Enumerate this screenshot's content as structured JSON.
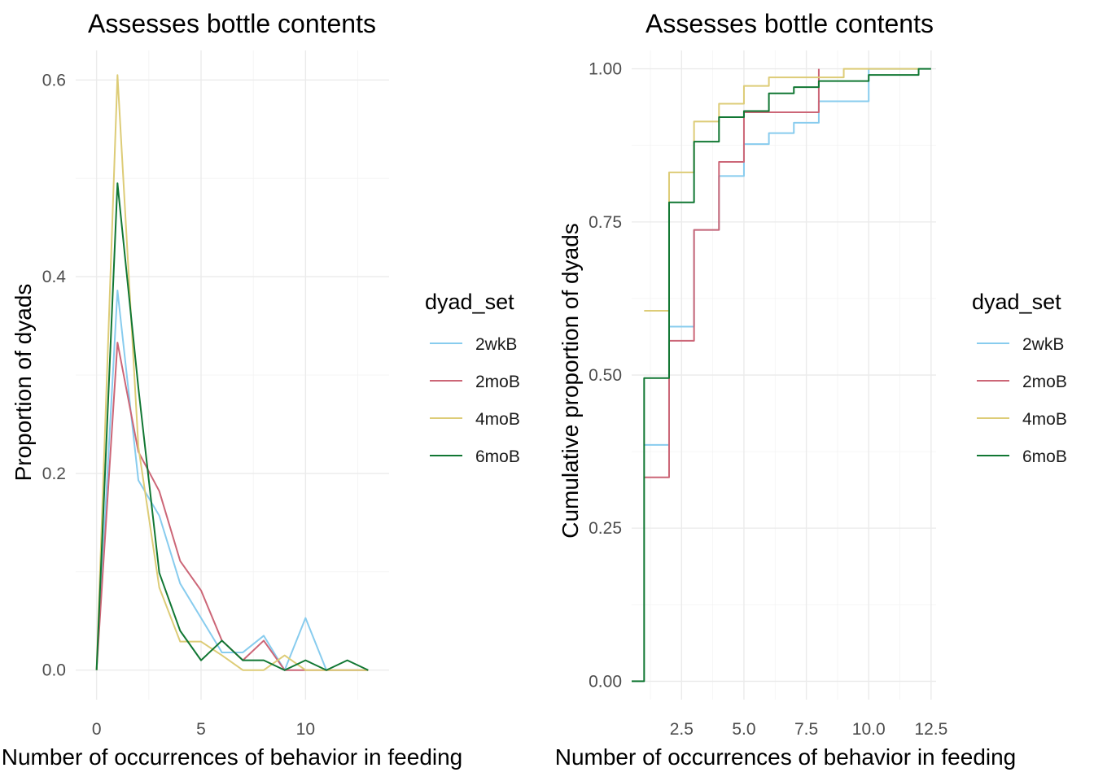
{
  "chart_data": [
    {
      "type": "line",
      "title": "Assesses bottle contents",
      "xlabel": "Number of occurrences of behavior in feeding",
      "ylabel": "Proportion of dyads",
      "xlim": [
        -1,
        14
      ],
      "ylim": [
        -0.03,
        0.63
      ],
      "xticks": [
        0,
        5,
        10
      ],
      "xtick_labels": [
        "0",
        "5",
        "10"
      ],
      "yticks": [
        0,
        0.2,
        0.4,
        0.6
      ],
      "ytick_labels": [
        "0.0",
        "0.2",
        "0.4",
        "0.6"
      ],
      "grid": true,
      "legend": {
        "title": "dyad_set",
        "position": "right"
      },
      "series": [
        {
          "name": "2wkB",
          "color": "#88CCEE",
          "x": [
            0,
            1,
            2,
            3,
            4,
            5,
            6,
            7,
            8,
            9,
            10,
            11,
            12,
            13
          ],
          "y": [
            0,
            0.386,
            0.193,
            0.157,
            0.088,
            0.053,
            0.018,
            0.018,
            0.035,
            0,
            0.053,
            0,
            0,
            0
          ]
        },
        {
          "name": "2moB",
          "color": "#CC6677",
          "x": [
            0,
            1,
            2,
            3,
            4,
            5,
            6,
            7,
            8,
            9,
            10,
            11,
            12,
            13
          ],
          "y": [
            0,
            0.333,
            0.222,
            0.182,
            0.111,
            0.081,
            0.03,
            0.01,
            0.03,
            0,
            0,
            0,
            0,
            0
          ]
        },
        {
          "name": "4moB",
          "color": "#DDCC77",
          "x": [
            0,
            1,
            2,
            3,
            4,
            5,
            6,
            7,
            8,
            9,
            10,
            11,
            12,
            13
          ],
          "y": [
            0,
            0.605,
            0.227,
            0.084,
            0.029,
            0.029,
            0.015,
            0,
            0,
            0.015,
            0,
            0,
            0,
            0
          ]
        },
        {
          "name": "6moB",
          "color": "#117733",
          "x": [
            0,
            1,
            2,
            3,
            4,
            5,
            6,
            7,
            8,
            9,
            10,
            11,
            12,
            13
          ],
          "y": [
            0,
            0.495,
            0.287,
            0.099,
            0.04,
            0.01,
            0.03,
            0.01,
            0.01,
            0,
            0.01,
            0,
            0.01,
            0
          ]
        }
      ]
    },
    {
      "type": "line",
      "step": true,
      "title": "Assesses bottle contents",
      "xlabel": "Number of occurrences of behavior in feeding",
      "ylabel": "Cumulative proportion of dyads",
      "xlim": [
        0.5,
        12.7
      ],
      "ylim": [
        -0.03,
        1.03
      ],
      "xticks": [
        2.5,
        5.0,
        7.5,
        10.0,
        12.5
      ],
      "xtick_labels": [
        "2.5",
        "5.0",
        "7.5",
        "10.0",
        "12.5"
      ],
      "yticks": [
        0,
        0.25,
        0.5,
        0.75,
        1.0
      ],
      "ytick_labels": [
        "0.00",
        "0.25",
        "0.50",
        "0.75",
        "1.00"
      ],
      "grid": true,
      "legend": {
        "title": "dyad_set",
        "position": "right"
      },
      "series": [
        {
          "name": "2wkB",
          "color": "#88CCEE",
          "x": [
            1,
            2,
            3,
            4,
            5,
            6,
            7,
            8,
            10,
            12
          ],
          "y": [
            0.386,
            0.579,
            0.737,
            0.825,
            0.877,
            0.895,
            0.912,
            0.947,
            1.0,
            1.0
          ]
        },
        {
          "name": "2moB",
          "color": "#CC6677",
          "x": [
            1,
            2,
            3,
            4,
            5,
            6,
            8
          ],
          "y": [
            0.333,
            0.556,
            0.737,
            0.848,
            0.929,
            0.929,
            1.0
          ]
        },
        {
          "name": "4moB",
          "color": "#DDCC77",
          "x": [
            1,
            2,
            3,
            4,
            5,
            6,
            9,
            12
          ],
          "y": [
            0.605,
            0.831,
            0.914,
            0.943,
            0.972,
            0.986,
            1.0,
            1.0
          ]
        },
        {
          "name": "6moB",
          "color": "#117733",
          "x": [
            0.5,
            1,
            2,
            3,
            4,
            5,
            6,
            7,
            8,
            10,
            12,
            12.5
          ],
          "y": [
            0,
            0.495,
            0.782,
            0.881,
            0.921,
            0.931,
            0.96,
            0.97,
            0.98,
            0.99,
            1.0,
            1.0
          ]
        }
      ]
    }
  ]
}
